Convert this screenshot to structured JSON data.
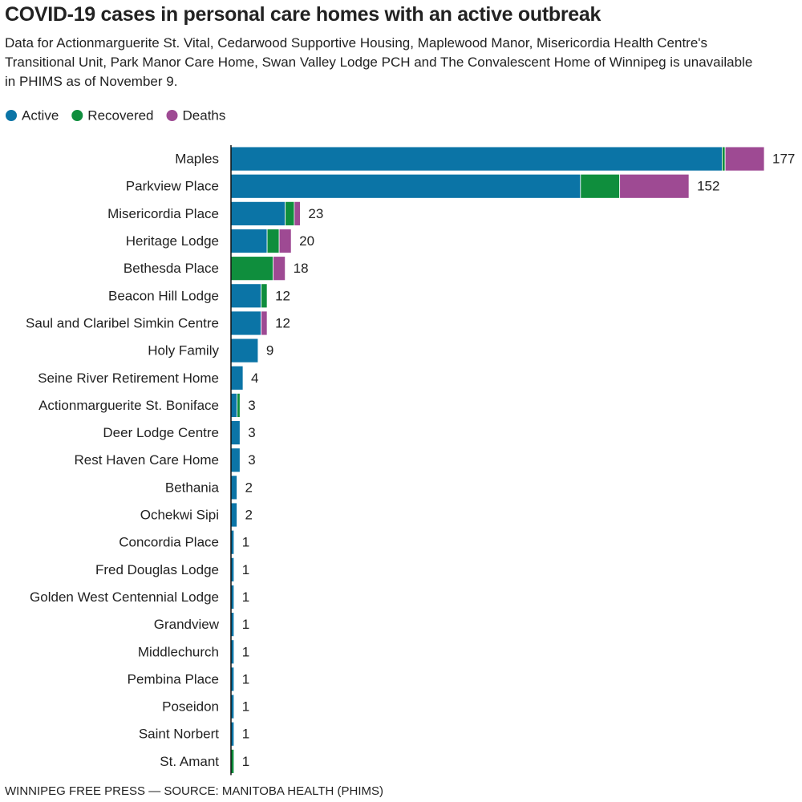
{
  "chart_data": {
    "type": "stacked-bar-horizontal",
    "title": "COVID-19 cases in personal care homes with an active outbreak",
    "subtitle": "Data for Actionmarguerite St. Vital, Cedarwood Supportive Housing, Maplewood Manor, Misericordia Health Centre's Transitional Unit, Park Manor Care Home, Swan Valley Lodge PCH and The Convalescent Home of Winnipeg is unavailable in PHIMS as of November 9.",
    "source": "WINNIPEG FREE PRESS — SOURCE: MANITOBA HEALTH (PHIMS)",
    "categories": [
      "Maples",
      "Parkview Place",
      "Misericordia Place",
      "Heritage Lodge",
      "Bethesda Place",
      "Beacon Hill Lodge",
      "Saul and Claribel Simkin Centre",
      "Holy Family",
      "Seine River Retirement Home",
      "Actionmarguerite St. Boniface",
      "Deer Lodge Centre",
      "Rest Haven Care Home",
      "Bethania",
      "Ochekwi Sipi",
      "Concordia Place",
      "Fred Douglas Lodge",
      "Golden West Centennial Lodge",
      "Grandview",
      "Middlechurch",
      "Pembina Place",
      "Poseidon",
      "Saint Norbert",
      "St. Amant"
    ],
    "series": [
      {
        "name": "Active",
        "color": "#0b74a6",
        "values": [
          163,
          116,
          18,
          12,
          0,
          10,
          10,
          9,
          4,
          2,
          3,
          3,
          2,
          2,
          1,
          1,
          1,
          1,
          1,
          1,
          1,
          1,
          0
        ]
      },
      {
        "name": "Recovered",
        "color": "#0f8e3d",
        "values": [
          1,
          13,
          3,
          4,
          14,
          2,
          0,
          0,
          0,
          1,
          0,
          0,
          0,
          0,
          0,
          0,
          0,
          0,
          0,
          0,
          0,
          0,
          1
        ]
      },
      {
        "name": "Deaths",
        "color": "#9e4a93",
        "values": [
          13,
          23,
          2,
          4,
          4,
          0,
          2,
          0,
          0,
          0,
          0,
          0,
          0,
          0,
          0,
          0,
          0,
          0,
          0,
          0,
          0,
          0,
          0
        ]
      }
    ],
    "totals": [
      177,
      152,
      23,
      20,
      18,
      12,
      12,
      9,
      4,
      3,
      3,
      3,
      2,
      2,
      1,
      1,
      1,
      1,
      1,
      1,
      1,
      1,
      1
    ],
    "xlim": [
      0,
      177
    ],
    "legend": "top-left"
  }
}
